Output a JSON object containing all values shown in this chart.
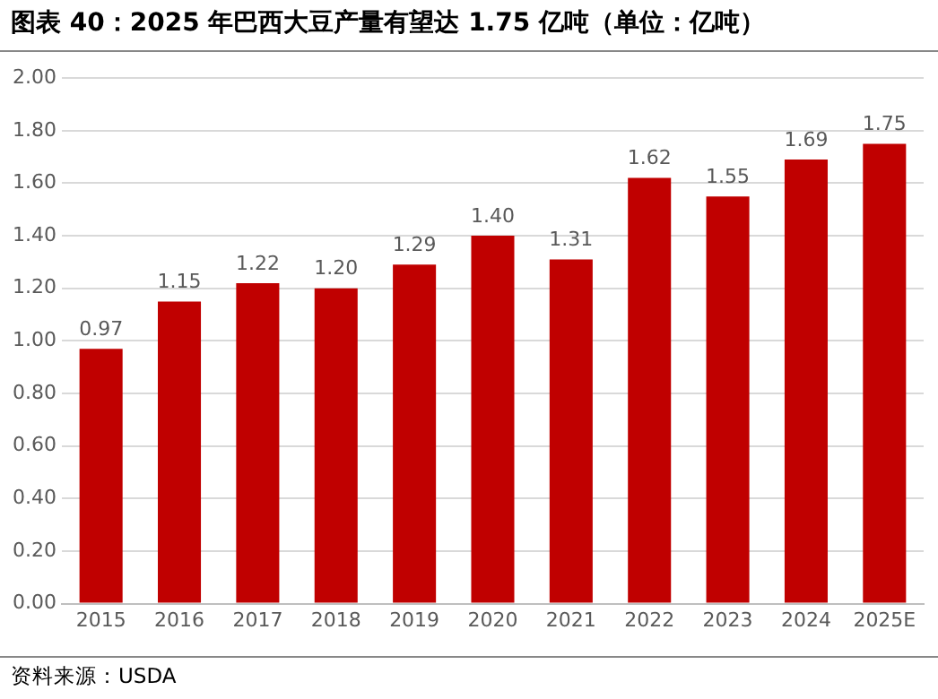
{
  "chart_data": {
    "type": "bar",
    "title": "图表 40：2025 年巴西大豆产量有望达 1.75 亿吨（单位：亿吨）",
    "categories": [
      "2015",
      "2016",
      "2017",
      "2018",
      "2019",
      "2020",
      "2021",
      "2022",
      "2023",
      "2024",
      "2025E"
    ],
    "values": [
      0.97,
      1.15,
      1.22,
      1.2,
      1.29,
      1.4,
      1.31,
      1.62,
      1.55,
      1.69,
      1.75
    ],
    "value_labels": [
      "0.97",
      "1.15",
      "1.22",
      "1.20",
      "1.29",
      "1.40",
      "1.31",
      "1.62",
      "1.55",
      "1.69",
      "1.75"
    ],
    "color": "#c00000",
    "ylim": [
      0,
      2
    ],
    "yticks": [
      {
        "value": 0,
        "label": "0.00"
      },
      {
        "value": 0.2,
        "label": "0.20"
      },
      {
        "value": 0.4,
        "label": "0.40"
      },
      {
        "value": 0.6,
        "label": "0.60"
      },
      {
        "value": 0.8,
        "label": "0.80"
      },
      {
        "value": 1,
        "label": "1.00"
      },
      {
        "value": 1.2,
        "label": "1.20"
      },
      {
        "value": 1.4,
        "label": "1.40"
      },
      {
        "value": 1.6,
        "label": "1.60"
      },
      {
        "value": 1.8,
        "label": "1.80"
      },
      {
        "value": 2,
        "label": "2.00"
      }
    ],
    "grid": "y",
    "annotations": [
      "资料来源：USDA"
    ]
  }
}
